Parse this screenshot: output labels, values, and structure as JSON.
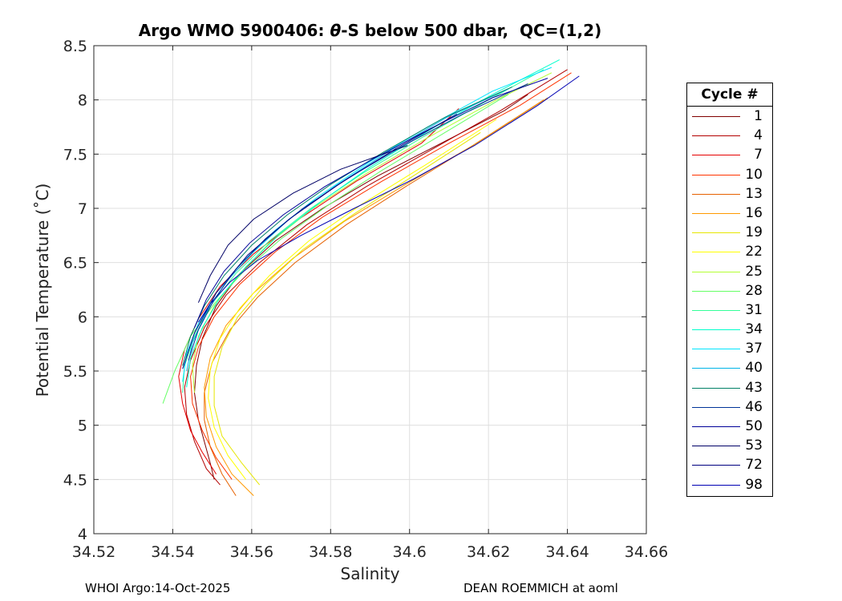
{
  "chart_data": {
    "type": "line",
    "title": "Argo WMO 5900406: θ-S below 500 dbar,  QC=(1,2)",
    "title_parts": {
      "prefix": "Argo WMO 5900406: ",
      "theta": "θ",
      "suffix": "-S below 500 dbar,  QC=(1,2)"
    },
    "xlabel": "Salinity",
    "ylabel": "Potential Temperature (˚C)",
    "xlim": [
      34.52,
      34.66
    ],
    "ylim": [
      4,
      8.5
    ],
    "xticks": [
      34.52,
      34.54,
      34.56,
      34.58,
      34.6,
      34.62,
      34.64,
      34.66
    ],
    "xtick_labels": [
      "34.52",
      "34.54",
      "34.56",
      "34.58",
      "34.6",
      "34.62",
      "34.64",
      "34.66"
    ],
    "yticks": [
      4,
      4.5,
      5,
      5.5,
      6,
      6.5,
      7,
      7.5,
      8,
      8.5
    ],
    "ytick_labels": [
      "4",
      "4.5",
      "5",
      "5.5",
      "6",
      "6.5",
      "7",
      "7.5",
      "8",
      "8.5"
    ],
    "grid": true,
    "legend": {
      "title": "Cycle #",
      "placement": "outside-right",
      "entries": [
        {
          "label": "1",
          "color": "#800000"
        },
        {
          "label": "4",
          "color": "#b30000"
        },
        {
          "label": "7",
          "color": "#e60000"
        },
        {
          "label": "10",
          "color": "#ff3300"
        },
        {
          "label": "13",
          "color": "#e66100"
        },
        {
          "label": "16",
          "color": "#ff9900"
        },
        {
          "label": "19",
          "color": "#e6e600"
        },
        {
          "label": "22",
          "color": "#ffff00"
        },
        {
          "label": "25",
          "color": "#b3ff33"
        },
        {
          "label": "28",
          "color": "#66ff66"
        },
        {
          "label": "31",
          "color": "#33ff99"
        },
        {
          "label": "34",
          "color": "#00ffcc"
        },
        {
          "label": "37",
          "color": "#00e6ff"
        },
        {
          "label": "40",
          "color": "#00b3e6"
        },
        {
          "label": "43",
          "color": "#008066"
        },
        {
          "label": "46",
          "color": "#003399"
        },
        {
          "label": "50",
          "color": "#000099"
        },
        {
          "label": "53",
          "color": "#000066"
        },
        {
          "label": "72",
          "color": "#000080"
        },
        {
          "label": "98",
          "color": "#0000b3"
        }
      ]
    },
    "series": [
      {
        "name": "1",
        "color": "#800000",
        "x": [
          34.5505,
          34.5495,
          34.548,
          34.5465,
          34.5455,
          34.546,
          34.5475,
          34.551,
          34.557,
          34.566,
          34.578,
          34.592,
          34.608,
          34.624,
          34.63
        ],
        "y": [
          4.5,
          4.65,
          4.85,
          5.05,
          5.3,
          5.55,
          5.8,
          6.1,
          6.4,
          6.7,
          7.0,
          7.3,
          7.6,
          7.9,
          8.05
        ]
      },
      {
        "name": "4",
        "color": "#b30000",
        "x": [
          34.552,
          34.5485,
          34.5455,
          34.5435,
          34.543,
          34.5445,
          34.548,
          34.5535,
          34.562,
          34.574,
          34.589,
          34.606,
          34.623,
          34.64
        ],
        "y": [
          4.45,
          4.6,
          4.85,
          5.1,
          5.35,
          5.6,
          5.9,
          6.2,
          6.5,
          6.85,
          7.2,
          7.55,
          7.9,
          8.28
        ]
      },
      {
        "name": "7",
        "color": "#e60000",
        "x": [
          34.551,
          34.5475,
          34.5445,
          34.5425,
          34.5415,
          34.543,
          34.5465,
          34.552,
          34.5605,
          34.572,
          34.5865,
          34.603,
          34.6125
        ],
        "y": [
          4.55,
          4.75,
          4.95,
          5.2,
          5.45,
          5.7,
          5.98,
          6.28,
          6.58,
          6.9,
          7.25,
          7.6,
          7.92
        ]
      },
      {
        "name": "10",
        "color": "#ff3300",
        "x": [
          34.555,
          34.551,
          34.5475,
          34.545,
          34.5445,
          34.5465,
          34.5505,
          34.557,
          34.566,
          34.578,
          34.593,
          34.61,
          34.628,
          34.641
        ],
        "y": [
          4.5,
          4.7,
          4.95,
          5.2,
          5.45,
          5.72,
          6.0,
          6.3,
          6.6,
          6.92,
          7.25,
          7.6,
          7.95,
          8.25
        ]
      },
      {
        "name": "13",
        "color": "#e66100",
        "x": [
          34.556,
          34.5525,
          34.5495,
          34.548,
          34.548,
          34.55,
          34.5545,
          34.5615,
          34.571,
          34.584,
          34.599,
          34.616,
          34.634
        ],
        "y": [
          4.35,
          4.55,
          4.8,
          5.05,
          5.3,
          5.58,
          5.88,
          6.18,
          6.5,
          6.85,
          7.2,
          7.58,
          8.0
        ]
      },
      {
        "name": "16",
        "color": "#ff9900",
        "x": [
          34.5605,
          34.555,
          34.551,
          34.5485,
          34.548,
          34.5495,
          34.5535,
          34.5605,
          34.5705,
          34.5835,
          34.599,
          34.617,
          34.635
        ],
        "y": [
          4.35,
          4.55,
          4.8,
          5.08,
          5.35,
          5.62,
          5.92,
          6.22,
          6.54,
          6.88,
          7.22,
          7.6,
          8.02
        ]
      },
      {
        "name": "19",
        "color": "#e6e600",
        "x": [
          34.562,
          34.5575,
          34.5525,
          34.5505,
          34.5505,
          34.5525,
          34.5565,
          34.5635,
          34.573,
          34.586,
          34.601,
          34.618
        ],
        "y": [
          4.45,
          4.65,
          4.9,
          5.18,
          5.45,
          5.72,
          6.0,
          6.3,
          6.62,
          6.95,
          7.3,
          7.7
        ]
      },
      {
        "name": "22",
        "color": "#ffff00",
        "x": [
          34.5585,
          34.554,
          34.5505,
          34.549,
          34.5495,
          34.552,
          34.557,
          34.5645,
          34.5745,
          34.588,
          34.604,
          34.622
        ],
        "y": [
          4.5,
          4.72,
          4.98,
          5.25,
          5.52,
          5.8,
          6.08,
          6.38,
          6.7,
          7.04,
          7.4,
          7.82
        ]
      },
      {
        "name": "25",
        "color": "#b3ff33",
        "x": [
          34.5455,
          34.545,
          34.5465,
          34.5505,
          34.5565,
          34.5645,
          34.5755,
          34.589,
          34.605,
          34.622,
          34.636
        ],
        "y": [
          5.3,
          5.55,
          5.82,
          6.1,
          6.38,
          6.68,
          7.0,
          7.32,
          7.66,
          8.0,
          8.25
        ]
      },
      {
        "name": "28",
        "color": "#66ff66",
        "x": [
          34.5375,
          34.5405,
          34.5445,
          34.5505,
          34.558,
          34.5675,
          34.579,
          34.593,
          34.609,
          34.625
        ],
        "y": [
          5.2,
          5.5,
          5.82,
          6.12,
          6.42,
          6.72,
          7.02,
          7.35,
          7.7,
          8.05
        ]
      },
      {
        "name": "31",
        "color": "#33ff99",
        "x": [
          34.5425,
          34.543,
          34.5455,
          34.5495,
          34.556,
          34.5645,
          34.575,
          34.588,
          34.6035,
          34.62,
          34.634
        ],
        "y": [
          5.3,
          5.55,
          5.82,
          6.1,
          6.4,
          6.7,
          7.0,
          7.32,
          7.66,
          8.0,
          8.28
        ]
      },
      {
        "name": "34",
        "color": "#00ffcc",
        "x": [
          34.5435,
          34.5445,
          34.5475,
          34.552,
          34.5585,
          34.567,
          34.5775,
          34.59,
          34.605,
          34.621,
          34.638
        ],
        "y": [
          5.35,
          5.62,
          5.9,
          6.18,
          6.46,
          6.76,
          7.06,
          7.38,
          7.72,
          8.05,
          8.37
        ]
      },
      {
        "name": "37",
        "color": "#00e6ff",
        "x": [
          34.5425,
          34.5435,
          34.5465,
          34.551,
          34.5575,
          34.566,
          34.5765,
          34.5895,
          34.6045,
          34.621,
          34.636
        ],
        "y": [
          5.4,
          5.66,
          5.94,
          6.22,
          6.5,
          6.8,
          7.1,
          7.42,
          7.75,
          8.08,
          8.3
        ]
      },
      {
        "name": "40",
        "color": "#00b3e6",
        "x": [
          34.5435,
          34.545,
          34.5485,
          34.5535,
          34.5605,
          34.5695,
          34.581,
          34.5945,
          34.6095,
          34.625
        ],
        "y": [
          5.5,
          5.76,
          6.04,
          6.32,
          6.6,
          6.9,
          7.2,
          7.52,
          7.84,
          8.1
        ]
      },
      {
        "name": "43",
        "color": "#008066",
        "x": [
          34.5425,
          34.5445,
          34.548,
          34.553,
          34.56,
          34.569,
          34.58,
          34.5935,
          34.609,
          34.626
        ],
        "y": [
          5.55,
          5.82,
          6.1,
          6.38,
          6.66,
          6.94,
          7.22,
          7.52,
          7.84,
          8.12
        ]
      },
      {
        "name": "46",
        "color": "#003399",
        "x": [
          34.544,
          34.5465,
          34.5505,
          34.556,
          34.5635,
          34.573,
          34.5845,
          34.598,
          34.6135,
          34.63
        ],
        "y": [
          5.6,
          5.88,
          6.16,
          6.44,
          6.72,
          7.0,
          7.28,
          7.57,
          7.87,
          8.15
        ]
      },
      {
        "name": "50",
        "color": "#000099",
        "x": [
          34.5455,
          34.5485,
          34.553,
          34.5595,
          34.568,
          34.5785,
          34.591,
          34.6055,
          34.621,
          34.635
        ],
        "y": [
          5.9,
          6.16,
          6.42,
          6.68,
          6.94,
          7.2,
          7.46,
          7.74,
          8.02,
          8.2
        ]
      },
      {
        "name": "53",
        "color": "#000066",
        "x": [
          34.5465,
          34.5495,
          34.554,
          34.5605,
          34.5705,
          34.5825,
          34.5995
        ],
        "y": [
          6.13,
          6.38,
          6.66,
          6.9,
          7.14,
          7.36,
          7.58
        ]
      },
      {
        "name": "72",
        "color": "#000080",
        "x": [
          34.5425,
          34.5455,
          34.551,
          34.559,
          34.5695,
          34.582,
          34.5965,
          34.612
        ],
        "y": [
          5.52,
          5.85,
          6.22,
          6.57,
          6.9,
          7.22,
          7.55,
          7.87
        ]
      },
      {
        "name": "98",
        "color": "#0000b3",
        "x": [
          34.5465,
          34.5495,
          34.5545,
          34.5615,
          34.5725,
          34.586,
          34.601,
          34.6165,
          34.6325,
          34.643
        ],
        "y": [
          5.95,
          6.12,
          6.32,
          6.52,
          6.75,
          7.0,
          7.27,
          7.58,
          7.95,
          8.22
        ]
      }
    ]
  },
  "footer": {
    "left": "WHOI Argo:14-Oct-2025",
    "right": "DEAN ROEMMICH at aoml"
  }
}
